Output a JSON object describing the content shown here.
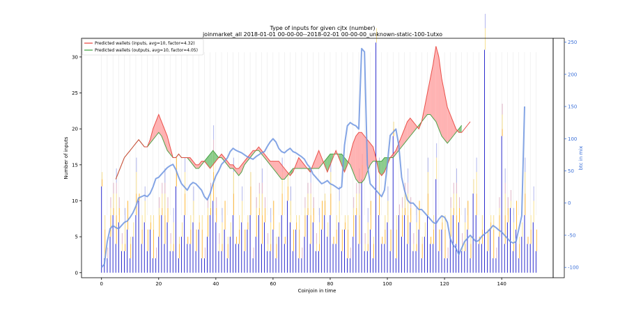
{
  "chart_data": {
    "type": "bar",
    "title": "Type of inputs for given cjtx (number)",
    "subtitle": "joinmarket_all 2018-01-01 00-00-00--2018-02-01 00-00-00_unknown-static-100-1utxo",
    "xlabel": "Coinjoin in time",
    "ylabel": "Number of inputs",
    "y2label": "btc in mix",
    "xlim": [
      -7,
      158
    ],
    "ylim": [
      -0.7,
      32.6
    ],
    "y2lim": [
      -116,
      256
    ],
    "xticks": [
      0,
      20,
      40,
      60,
      80,
      100,
      120,
      140
    ],
    "yticks": [
      0,
      5,
      10,
      15,
      20,
      25,
      30
    ],
    "y2ticks": [
      -100,
      -50,
      0,
      50,
      100,
      150,
      200,
      250
    ],
    "grid": false,
    "legend_position": "top-left",
    "colors": {
      "inputs_line": "#e8403a",
      "inputs_fill": "#ff9999",
      "outputs_line": "#3a9c3a",
      "outputs_fill": "#66bb66",
      "bars_dark": "#1515c8",
      "bars_orange": "#ffa500",
      "bars_yellow": "#f5d76e",
      "bars_pink": "#d8a0b8",
      "bars_lightblue": "#9aa0e8",
      "btc_line": "#6f95e0",
      "axis2": "#3a6fd8"
    },
    "series": [
      {
        "name": "Predicted wallets (inputs, avg=10, factor=4.32)",
        "x_start": 5,
        "values": [
          13,
          14,
          15,
          16,
          16.5,
          17,
          17.5,
          18,
          18.5,
          18,
          17.5,
          17.5,
          18.5,
          20,
          21,
          22,
          21,
          20,
          19,
          17.5,
          16,
          16,
          16.5,
          16,
          16,
          16,
          16,
          15.5,
          15,
          15,
          15.5,
          15.5,
          15,
          14.5,
          15,
          15.5,
          16,
          16.5,
          16,
          15.5,
          15,
          15,
          14.5,
          14.5,
          15,
          15.5,
          16,
          16.5,
          17,
          17,
          17.5,
          17,
          16.5,
          16,
          15.5,
          15.5,
          15.5,
          15.5,
          15,
          14.5,
          14,
          13.5,
          14,
          15,
          16,
          15.5,
          15,
          14.5,
          14,
          15,
          16,
          17,
          16,
          15,
          14,
          15,
          16,
          17,
          16,
          15,
          14,
          15,
          16.5,
          18,
          19,
          19.5,
          19.5,
          19,
          18.5,
          18,
          17.5,
          16,
          14,
          13.5,
          14,
          15,
          16,
          16.5,
          17,
          18,
          19,
          20,
          21,
          21.5,
          21,
          20.5,
          20,
          21,
          23,
          25,
          27,
          29,
          31.5,
          30,
          27,
          25,
          23,
          22,
          21,
          20,
          19.5,
          19.5,
          20,
          20.5,
          21
        ],
        "stroke": "#e8403a"
      },
      {
        "name": "Predicted wallets (outputs, avg=10, factor=4.05)",
        "x_start": 5,
        "values": [
          13,
          14,
          15,
          16,
          16.5,
          17,
          17.5,
          18,
          18.5,
          18,
          17.5,
          17.5,
          18,
          18.5,
          19,
          19.5,
          19,
          18,
          17,
          16.5,
          16,
          16,
          16.5,
          16,
          16,
          16,
          15.5,
          15,
          14.5,
          14.5,
          15,
          15.5,
          16,
          16.5,
          17,
          16.5,
          16,
          16,
          15.5,
          15,
          14.5,
          14.5,
          14,
          13.5,
          14,
          15,
          15.5,
          16,
          16.5,
          17,
          17,
          16.5,
          16,
          15.5,
          15,
          14.5,
          14,
          13.5,
          13,
          13,
          13.5,
          14,
          14.5,
          14.5,
          14.5,
          14.5,
          14.5,
          14.5,
          14.5,
          14.5,
          14.5,
          14.5,
          15,
          15.5,
          16,
          16.5,
          16.5,
          16.5,
          16.5,
          16.5,
          16,
          15.5,
          15,
          14,
          13,
          12.5,
          12.5,
          13,
          14,
          15,
          15.5,
          15.5,
          15.5,
          15.5,
          16,
          16,
          16,
          16,
          16.5,
          17,
          17.5,
          18,
          18.5,
          19,
          19.5,
          20,
          20.5,
          21,
          21.5,
          22,
          22,
          21.5,
          21,
          20,
          19,
          18.5,
          18,
          18.5,
          19,
          19.5,
          20,
          20.5
        ],
        "stroke": "#3a9c3a"
      }
    ],
    "btc_in_mix": {
      "x_start": 0,
      "values": [
        -100,
        -95,
        -60,
        -40,
        -35,
        -38,
        -40,
        -35,
        -30,
        -28,
        -22,
        -15,
        -5,
        8,
        10,
        12,
        10,
        15,
        25,
        38,
        40,
        45,
        50,
        55,
        58,
        60,
        52,
        40,
        30,
        25,
        20,
        28,
        32,
        30,
        25,
        20,
        10,
        5,
        15,
        30,
        42,
        50,
        60,
        65,
        70,
        80,
        85,
        82,
        80,
        78,
        75,
        72,
        70,
        68,
        72,
        75,
        78,
        80,
        88,
        95,
        100,
        95,
        85,
        80,
        78,
        82,
        85,
        80,
        78,
        75,
        72,
        68,
        60,
        55,
        45,
        40,
        35,
        30,
        32,
        35,
        30,
        28,
        25,
        22,
        25,
        90,
        120,
        125,
        122,
        120,
        115,
        240,
        235,
        60,
        30,
        25,
        20,
        15,
        10,
        20,
        60,
        105,
        110,
        115,
        90,
        40,
        20,
        5,
        0,
        0,
        -5,
        -10,
        -10,
        -15,
        -20,
        -25,
        -30,
        -32,
        -25,
        -20,
        -22,
        -30,
        -55,
        -65,
        -70,
        -80,
        -70,
        -60,
        -55,
        -50,
        -55,
        -60,
        -58,
        -52,
        -48,
        -45,
        -40,
        -35,
        -38,
        -42,
        -45,
        -50,
        -55,
        -60,
        -62,
        -60,
        -40,
        -20,
        150
      ],
      "stroke": "#6f95e0"
    },
    "legend": [
      "Predicted wallets (inputs, avg=10, factor=4.32)",
      "Predicted wallets (outputs, avg=10, factor=4.05)"
    ]
  }
}
